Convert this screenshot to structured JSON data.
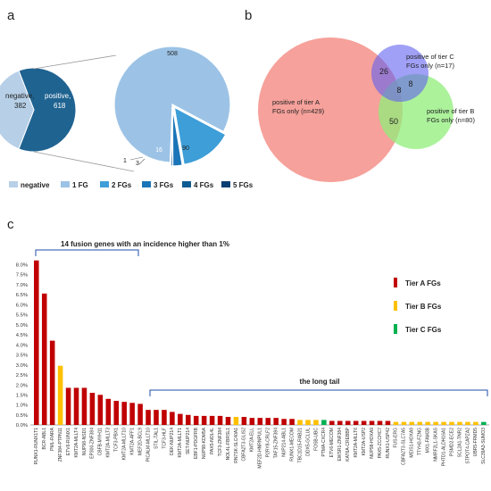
{
  "panel_labels": {
    "a": "a",
    "b": "b",
    "c": "c"
  },
  "colors": {
    "negative": "#b7d0e8",
    "fg1": "#9cc3e6",
    "fg2": "#3d9ed8",
    "fg3": "#1a75b8",
    "fg4": "#0d5b92",
    "fg5": "#0a3f73",
    "positive": "#1f6391",
    "tierA": "#c00000",
    "tierB": "#ffc000",
    "tierC": "#00b050",
    "vennA": "#f4908a",
    "vennB": "#90ee7a",
    "vennC": "#6060f0",
    "bracket": "#1f4ea8"
  },
  "chart_data": [
    {
      "type": "pie",
      "panel": "a-left",
      "labels": [
        "negative,",
        "positive,"
      ],
      "values": [
        382,
        618
      ]
    },
    {
      "type": "pie",
      "panel": "a-right",
      "categories": [
        "1 FG",
        "2 FGs",
        "3 FGs",
        "4 FGs",
        "5 FGs"
      ],
      "values": [
        508,
        90,
        16,
        3,
        1
      ],
      "value_labels": [
        "508",
        "90",
        "16",
        "3",
        "1"
      ],
      "legend": [
        "negative",
        "1 FG",
        "2 FGs",
        "3 FGs",
        "4 FGs",
        "5 FGs"
      ]
    },
    {
      "type": "venn",
      "panel": "b",
      "sets": [
        {
          "label_line1": "positive of tier A",
          "label_line2": "FGs only (n=429)"
        },
        {
          "label_line1": "positive of tier B",
          "label_line2": "FGs only (n=80)"
        },
        {
          "label_line1": "positive of tier C",
          "label_line2": "FGs only (n=17)"
        }
      ],
      "overlaps": {
        "AC": "26",
        "ABC": "8",
        "BC": "8",
        "AB": "50"
      }
    },
    {
      "type": "bar",
      "panel": "c",
      "yticks": [
        "0.0%",
        "0.5%",
        "1.0%",
        "1.5%",
        "2.0%",
        "2.5%",
        "3.0%",
        "3.5%",
        "4.0%",
        "4.5%",
        "5.0%",
        "5.5%",
        "6.0%",
        "6.5%",
        "7.0%",
        "7.5%",
        "8.0%"
      ],
      "ylim": [
        0,
        8.5
      ],
      "categories": [
        "RUNX1-RUNX1T1",
        "BCR-ABL1",
        "PML-RARA",
        "ZNF384-PTPN11",
        "ETV6-RUNX1",
        "KMT2A-MLLT4",
        "NUP98-NSD1",
        "EP300-ZNF384",
        "CBFB-MYH11",
        "KMT2A-MLLT3",
        "TCF3-PBX1",
        "KMT2A-MLLT10",
        "KMT2A-AFF1",
        "MEF2D-BCL9",
        "PICALM-MLLT10",
        "STIL-TAL1",
        "TCF3-HLF",
        "DEK-NUP214",
        "KMT2A-MLLT1",
        "SET-NUP214",
        "EBF1-PDGFRB",
        "NUP98-KDM5A",
        "PAX5-NOL4L",
        "TCF3-ZNF384",
        "NOL4L-FBRSL1",
        "RN7SK-SLC40A1",
        "CBFA2T3-GLIS2",
        "KMT2A-ELL",
        "MEF2D-HNRNPUL1",
        "P2RY8-CRLF2",
        "TAF15-ZNF384",
        "NUP214-ABL1",
        "RUNX1-MECOM",
        "TBC1D15-RAB21",
        "DDX5-GCLUL",
        "FOSB-UBC",
        "PTMA-CXCR4",
        "ETV6-MECOM",
        "EWSR1-ZNF384",
        "KAT6A-CREBBP",
        "KMT2A-MLLT6",
        "KMT2A-USP2",
        "NUP98-HOXA9",
        "PAX5-ZCCHC7",
        "RUNX1-USP42",
        "FUS-ERG",
        "CBFA2T3-SLC7A5",
        "MEIS1-HOXA9",
        "TTYH3-FZNG",
        "MX1-FAM3B",
        "NMRF2L1-SKAS",
        "PHTD1-ALDH16A1",
        "PSMD2-ECE2",
        "SCL2A1-TNR2",
        "STPOT4-CAPZA2",
        "UBR5-FRMD5",
        "SLC39A3-SUMO3"
      ],
      "values": [
        8.2,
        6.55,
        4.2,
        2.95,
        1.85,
        1.85,
        1.85,
        1.6,
        1.5,
        1.3,
        1.2,
        1.15,
        1.1,
        1.05,
        0.75,
        0.75,
        0.75,
        0.65,
        0.55,
        0.5,
        0.45,
        0.45,
        0.45,
        0.45,
        0.4,
        0.4,
        0.4,
        0.35,
        0.35,
        0.35,
        0.35,
        0.3,
        0.3,
        0.25,
        0.25,
        0.25,
        0.25,
        0.2,
        0.2,
        0.2,
        0.2,
        0.2,
        0.2,
        0.2,
        0.2,
        0.15,
        0.15,
        0.15,
        0.15,
        0.15,
        0.15,
        0.15,
        0.15,
        0.15,
        0.15,
        0.15,
        0.15
      ],
      "tiers": [
        "A",
        "A",
        "A",
        "B",
        "A",
        "A",
        "A",
        "A",
        "A",
        "A",
        "A",
        "A",
        "A",
        "A",
        "A",
        "A",
        "A",
        "A",
        "A",
        "A",
        "A",
        "A",
        "A",
        "A",
        "A",
        "B",
        "A",
        "A",
        "A",
        "A",
        "A",
        "A",
        "A",
        "B",
        "B",
        "B",
        "C",
        "A",
        "A",
        "A",
        "A",
        "A",
        "A",
        "A",
        "A",
        "B",
        "B",
        "B",
        "B",
        "B",
        "B",
        "B",
        "B",
        "B",
        "B",
        "B",
        "C"
      ],
      "legend": [
        "Tier A FGs",
        "Tier B FGs",
        "Tier C FGs"
      ],
      "annotations": [
        "14 fusion genes with an incidence higher than 1%",
        "the long tail"
      ]
    }
  ]
}
